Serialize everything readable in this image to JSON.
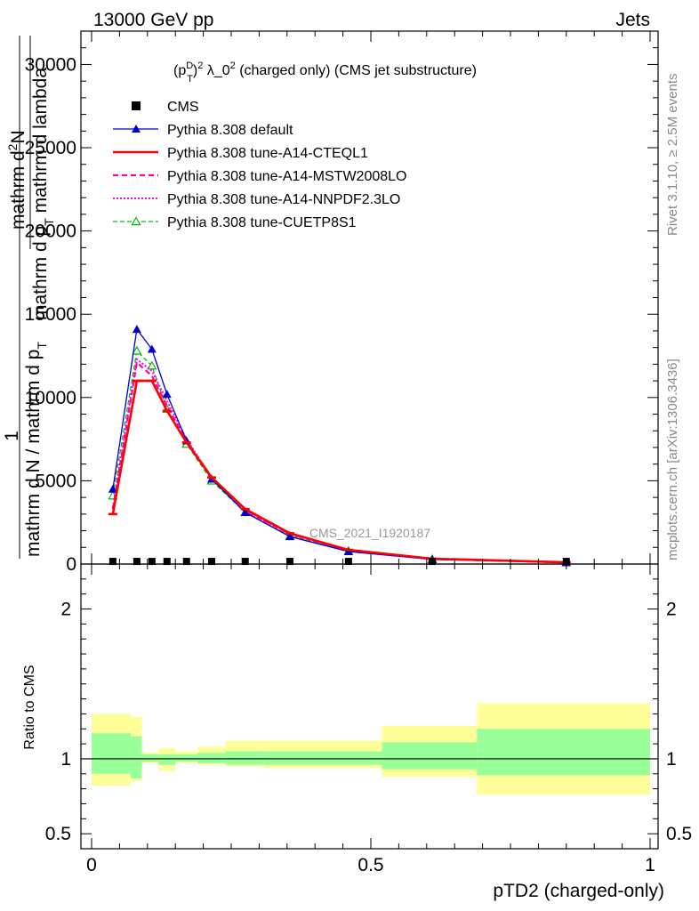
{
  "header": {
    "left": "13000 GeV pp",
    "right": "Jets"
  },
  "side": {
    "rivet": "Rivet 3.1.10, ≥ 2.5M events",
    "mcplots": "mcplots.cern.ch [arXiv:1306.3436]"
  },
  "chart_data": {
    "type": "line",
    "title_parts": {
      "p": "(p",
      "sup_d": "D",
      "sub_t": "T",
      "close": ")",
      "sup_2": "2",
      "rest": " λ_0",
      "sup_2b": "2",
      "tail": " (charged only) (CMS jet substructure)"
    },
    "analysis_label": "CMS_2021_I1920187",
    "ylabel_main": {
      "one": "1",
      "num_text": "mathrm d",
      "num_sup": "2",
      "num_tail": "N",
      "den_text": "mathrm d p",
      "den_sub": "T",
      "den_tail": " mathrm d lambda",
      "frac_text": "mathrm d N / mathrm d p",
      "frac_sub": "T"
    },
    "ylabel_ratio": "Ratio to CMS",
    "xlabel": "pTD2 (charged-only)",
    "xlim": [
      0,
      1
    ],
    "ylim_main": [
      0,
      32000
    ],
    "ylim_ratio": [
      0.4,
      2.3
    ],
    "y_ticks_main": [
      "0",
      "5000",
      "10000",
      "15000",
      "20000",
      "25000",
      "30000"
    ],
    "y_ticks_ratio": [
      "0.5",
      "1",
      "2"
    ],
    "x_ticks": [
      "0",
      "0.5",
      "1"
    ],
    "data_x": [
      0.038,
      0.081,
      0.108,
      0.135,
      0.17,
      0.215,
      0.275,
      0.355,
      0.46,
      0.61,
      0.85
    ],
    "cms_values": [
      50,
      50,
      50,
      50,
      50,
      50,
      50,
      50,
      50,
      50,
      50
    ],
    "series": [
      {
        "name": "CMS",
        "style": "cms",
        "color": "#000000"
      },
      {
        "name": "Pythia 8.308 default",
        "style": "default",
        "color": "#0000cc",
        "values": [
          4500,
          14100,
          12900,
          10200,
          7400,
          5100,
          3100,
          1650,
          750,
          270,
          90
        ]
      },
      {
        "name": "Pythia 8.308 tune-A14-CTEQL1",
        "style": "cteq",
        "color": "#ff0000",
        "values": [
          3000,
          11000,
          11000,
          9200,
          7300,
          5200,
          3300,
          1850,
          850,
          320,
          100
        ]
      },
      {
        "name": "Pythia 8.308 tune-A14-MSTW2008LO",
        "style": "mstw",
        "color": "#ff00aa",
        "values": [
          3300,
          12100,
          11300,
          9500,
          7400,
          5200,
          3200,
          1800,
          830,
          310,
          95
        ]
      },
      {
        "name": "Pythia 8.308 tune-A14-NNPDF2.3LO",
        "style": "nnpdf",
        "color": "#ff00ff",
        "values": [
          3400,
          12300,
          11600,
          9800,
          7500,
          5200,
          3200,
          1780,
          820,
          300,
          95
        ]
      },
      {
        "name": "Pythia 8.308 tune-CUETP8S1",
        "style": "cuetp",
        "color": "#00bb00",
        "values": [
          4100,
          12800,
          11900,
          9300,
          7200,
          5000,
          3100,
          1680,
          780,
          290,
          90
        ]
      }
    ],
    "ratio_band_edges": [
      0.0,
      0.07,
      0.09,
      0.12,
      0.15,
      0.19,
      0.24,
      0.31,
      0.52,
      0.69,
      1.0
    ],
    "ratio_green": [
      [
        0.9,
        1.17
      ],
      [
        0.87,
        1.15
      ],
      [
        0.98,
        1.03
      ],
      [
        0.96,
        1.03
      ],
      [
        0.98,
        1.03
      ],
      [
        0.97,
        1.04
      ],
      [
        0.96,
        1.05
      ],
      [
        0.96,
        1.05
      ],
      [
        0.93,
        1.11
      ],
      [
        0.89,
        1.2
      ]
    ],
    "ratio_yellow": [
      [
        0.82,
        1.3
      ],
      [
        0.85,
        1.28
      ],
      [
        0.97,
        1.04
      ],
      [
        0.92,
        1.07
      ],
      [
        0.97,
        1.05
      ],
      [
        0.96,
        1.08
      ],
      [
        0.95,
        1.12
      ],
      [
        0.94,
        1.12
      ],
      [
        0.88,
        1.22
      ],
      [
        0.76,
        1.37
      ]
    ]
  }
}
